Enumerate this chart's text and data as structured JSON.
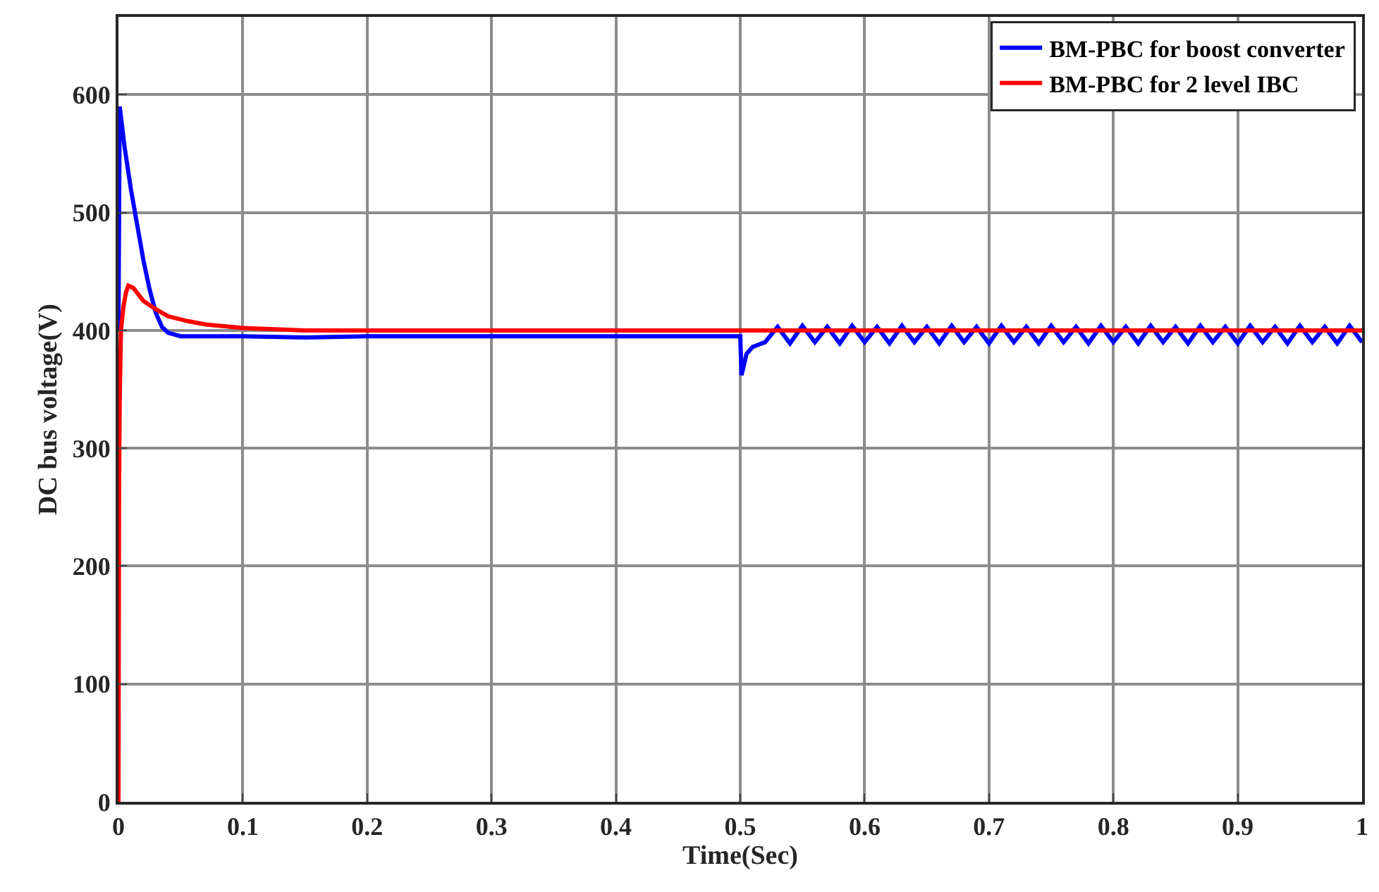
{
  "chart_data": {
    "type": "line",
    "xlabel": "Time(Sec)",
    "ylabel": "DC bus voltage(V)",
    "xlim": [
      0,
      1
    ],
    "xticks": [
      0,
      0.1,
      0.2,
      0.3,
      0.4,
      0.5,
      0.6,
      0.7,
      0.8,
      0.9,
      1
    ],
    "ylim": [
      0,
      666
    ],
    "yticks": [
      0,
      100,
      200,
      300,
      400,
      500,
      600
    ],
    "grid": true,
    "legend": "top right",
    "line_style": "solid",
    "marker": "none",
    "series": [
      {
        "name": "BM-PBC for boost converter",
        "color": "#0000ff",
        "x": [
          0,
          0.001,
          0.005,
          0.01,
          0.015,
          0.02,
          0.025,
          0.03,
          0.035,
          0.04,
          0.05,
          0.1,
          0.15,
          0.2,
          0.3,
          0.4,
          0.499,
          0.5,
          0.501,
          0.505,
          0.51,
          0.515,
          0.52,
          0.53,
          0.54,
          0.55,
          0.56,
          0.57,
          0.58,
          0.59,
          0.6,
          0.61,
          0.62,
          0.63,
          0.64,
          0.65,
          0.66,
          0.67,
          0.68,
          0.69,
          0.7,
          0.71,
          0.72,
          0.73,
          0.74,
          0.75,
          0.76,
          0.77,
          0.78,
          0.79,
          0.8,
          0.81,
          0.82,
          0.83,
          0.84,
          0.85,
          0.86,
          0.87,
          0.88,
          0.89,
          0.9,
          0.91,
          0.92,
          0.93,
          0.94,
          0.95,
          0.96,
          0.97,
          0.98,
          0.99,
          1
        ],
        "values": [
          400,
          590,
          555,
          520,
          490,
          460,
          435,
          415,
          403,
          398,
          395,
          395,
          394,
          395,
          395,
          395,
          395,
          395,
          362,
          380,
          386,
          388,
          390,
          403,
          389,
          404,
          390,
          403,
          389,
          404,
          390,
          403,
          389,
          404,
          390,
          403,
          389,
          404,
          390,
          403,
          389,
          404,
          390,
          403,
          389,
          404,
          390,
          403,
          389,
          404,
          390,
          403,
          389,
          404,
          390,
          403,
          389,
          404,
          390,
          403,
          389,
          404,
          390,
          403,
          389,
          404,
          390,
          403,
          389,
          404,
          390
        ]
      },
      {
        "name": "BM-PBC for 2 level IBC",
        "color": "#ff0000",
        "x": [
          0,
          0.0005,
          0.001,
          0.002,
          0.004,
          0.006,
          0.008,
          0.012,
          0.02,
          0.03,
          0.04,
          0.055,
          0.07,
          0.1,
          0.15,
          0.2,
          0.5,
          1
        ],
        "values": [
          0,
          260,
          340,
          400,
          420,
          432,
          438,
          436,
          425,
          418,
          412,
          408,
          405,
          402,
          400,
          400,
          400,
          400
        ]
      }
    ]
  }
}
